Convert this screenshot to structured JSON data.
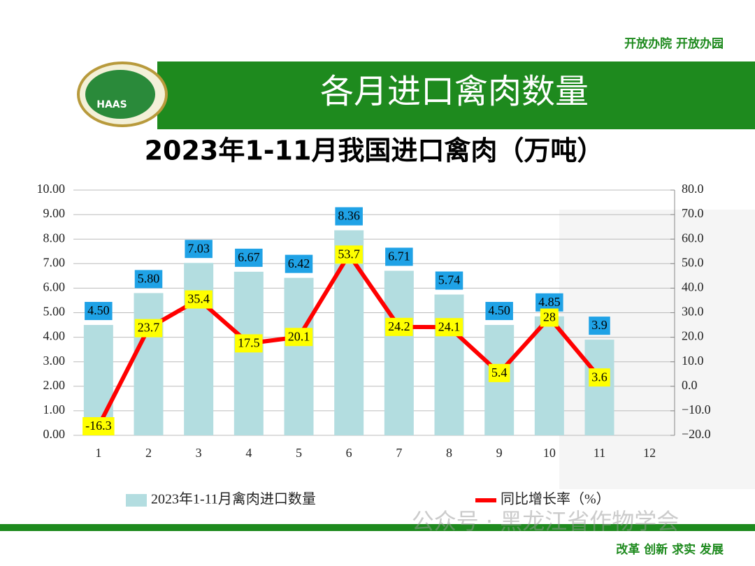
{
  "slogan_top": "开放办院 开放办园",
  "logo_text": "HAAS",
  "header_title": "各月进口禽肉数量",
  "watermark": "公众号 · 黑龙江省作物学会",
  "slogan_bottom": "改革 创新 求实 发展",
  "chart_data": {
    "type": "bar",
    "title": "2023年1-11月我国进口禽肉（万吨）",
    "categories": [
      "1",
      "2",
      "3",
      "4",
      "5",
      "6",
      "7",
      "8",
      "9",
      "10",
      "11",
      "12"
    ],
    "series": [
      {
        "name": "2023年1-11月禽肉进口数量",
        "type": "bar",
        "color": "#b3dde0",
        "values": [
          4.5,
          5.8,
          7.03,
          6.67,
          6.42,
          8.36,
          6.71,
          5.74,
          4.5,
          4.85,
          3.9,
          null
        ],
        "value_labels": [
          "4.50",
          "5.80",
          "7.03",
          "6.67",
          "6.42",
          "8.36",
          "6.71",
          "5.74",
          "4.50",
          "4.85",
          "3.9",
          null
        ]
      },
      {
        "name": "同比增长率（%）",
        "type": "line",
        "color": "#ff0000",
        "axis": "y2",
        "values": [
          -16.3,
          23.7,
          35.4,
          17.5,
          20.1,
          53.7,
          24.2,
          24.1,
          5.4,
          28,
          3.6,
          null
        ]
      }
    ],
    "ylim": [
      0,
      10
    ],
    "yticks": [
      {
        "value": 0,
        "label": "0.00"
      },
      {
        "value": 1,
        "label": "1.00"
      },
      {
        "value": 2,
        "label": "2.00"
      },
      {
        "value": 3,
        "label": "3.00"
      },
      {
        "value": 4,
        "label": "4.00"
      },
      {
        "value": 5,
        "label": "5.00"
      },
      {
        "value": 6,
        "label": "6.00"
      },
      {
        "value": 7,
        "label": "7.00"
      },
      {
        "value": 8,
        "label": "8.00"
      },
      {
        "value": 9,
        "label": "9.00"
      },
      {
        "value": 10,
        "label": "10.00"
      }
    ],
    "y2lim": [
      -20,
      80
    ],
    "y2ticks": [
      {
        "value": -20,
        "label": "−20.0"
      },
      {
        "value": -10,
        "label": "−10.0"
      },
      {
        "value": 0,
        "label": "0.0"
      },
      {
        "value": 10,
        "label": "10.0"
      },
      {
        "value": 20,
        "label": "20.0"
      },
      {
        "value": 30,
        "label": "30.0"
      },
      {
        "value": 40,
        "label": "40.0"
      },
      {
        "value": 50,
        "label": "50.0"
      },
      {
        "value": 60,
        "label": "60.0"
      },
      {
        "value": 70,
        "label": "70.0"
      },
      {
        "value": 80,
        "label": "80.0"
      }
    ],
    "grid": true,
    "legend": "bottom"
  }
}
